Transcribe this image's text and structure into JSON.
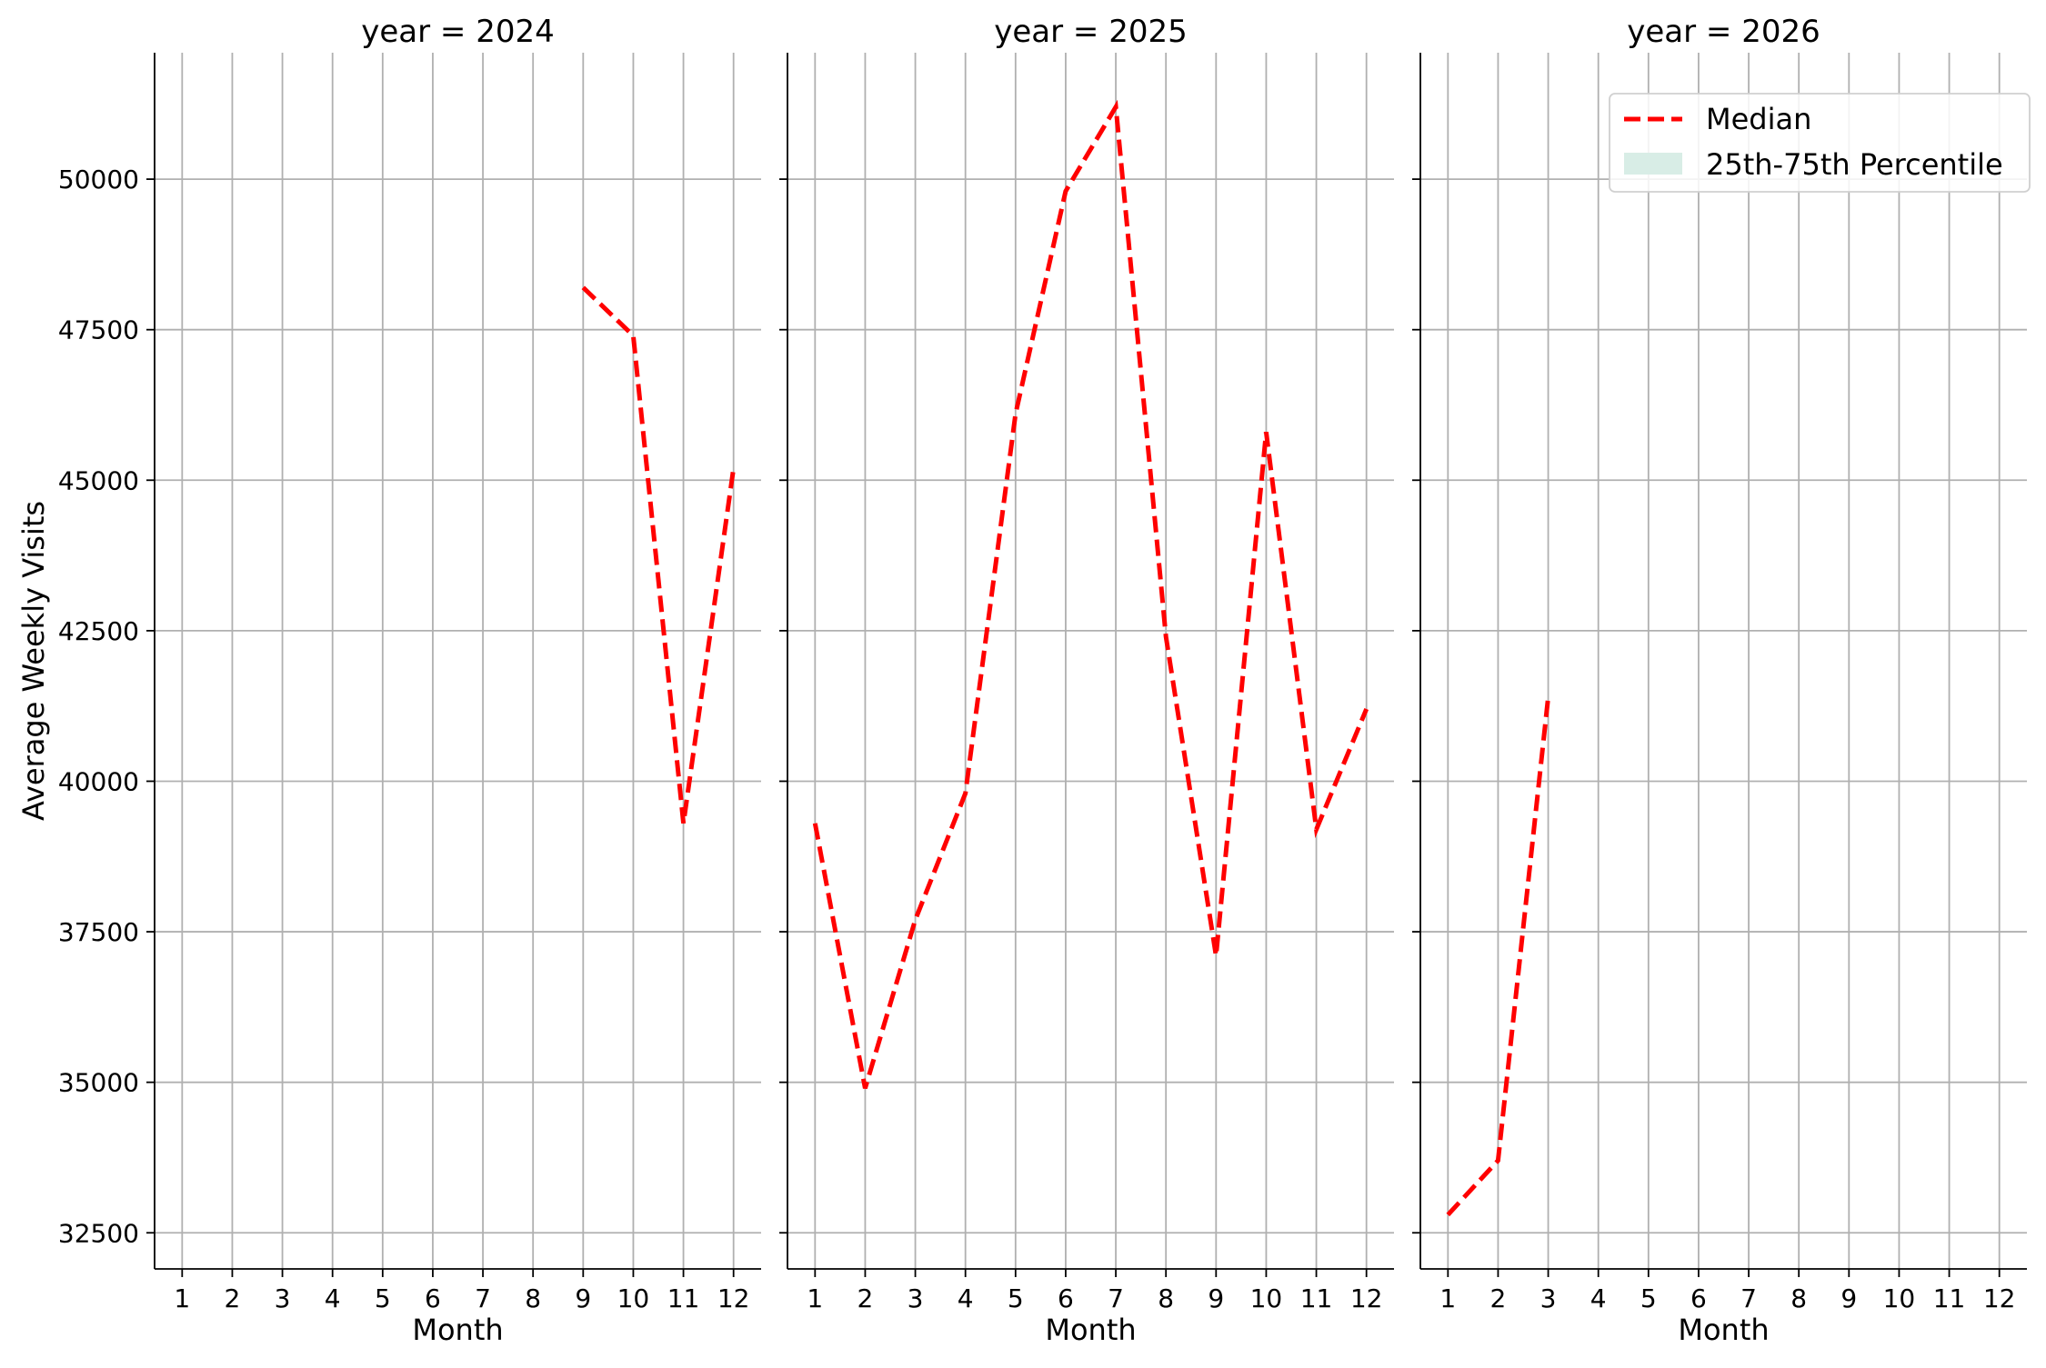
{
  "chart_data": [
    {
      "type": "line",
      "title": "year = 2024",
      "xlabel": "Month",
      "ylabel": "Average Weekly Visits",
      "xlim": [
        0.45,
        12.55
      ],
      "ylim": [
        31900,
        52100
      ],
      "x_ticks": [
        1,
        2,
        3,
        4,
        5,
        6,
        7,
        8,
        9,
        10,
        11,
        12
      ],
      "y_ticks": [
        32500,
        35000,
        37500,
        40000,
        42500,
        45000,
        47500,
        50000
      ],
      "grid": true,
      "series": [
        {
          "name": "Median",
          "style": "dashed",
          "color": "#ff0000",
          "x": [
            9,
            10,
            11,
            12
          ],
          "values": [
            48200,
            47400,
            39300,
            45200
          ]
        }
      ]
    },
    {
      "type": "line",
      "title": "year = 2025",
      "xlabel": "Month",
      "ylabel": "",
      "xlim": [
        0.45,
        12.55
      ],
      "ylim": [
        31900,
        52100
      ],
      "x_ticks": [
        1,
        2,
        3,
        4,
        5,
        6,
        7,
        8,
        9,
        10,
        11,
        12
      ],
      "grid": true,
      "series": [
        {
          "name": "Median",
          "style": "dashed",
          "color": "#ff0000",
          "x": [
            1,
            2,
            3,
            4,
            5,
            6,
            7,
            8,
            9,
            10,
            11,
            12
          ],
          "values": [
            39300,
            34900,
            37700,
            39800,
            46100,
            49800,
            51200,
            42400,
            37100,
            45800,
            39200,
            41200
          ]
        }
      ]
    },
    {
      "type": "line",
      "title": "year = 2026",
      "xlabel": "Month",
      "ylabel": "",
      "xlim": [
        0.45,
        12.55
      ],
      "ylim": [
        31900,
        52100
      ],
      "x_ticks": [
        1,
        2,
        3,
        4,
        5,
        6,
        7,
        8,
        9,
        10,
        11,
        12
      ],
      "grid": true,
      "series": [
        {
          "name": "Median",
          "style": "dashed",
          "color": "#ff0000",
          "x": [
            1,
            2,
            3
          ],
          "values": [
            32800,
            33700,
            41400
          ]
        }
      ]
    }
  ],
  "legend": {
    "placement": "top-right",
    "entries": [
      {
        "label": "Median",
        "kind": "dashed-line",
        "color": "#ff0000"
      },
      {
        "label": "25th-75th Percentile",
        "kind": "band",
        "color": "#d8ede6"
      }
    ]
  },
  "colors": {
    "median_line": "#ff0000",
    "percentile_band": "#d8ede6",
    "grid": "#b0b0b0"
  }
}
